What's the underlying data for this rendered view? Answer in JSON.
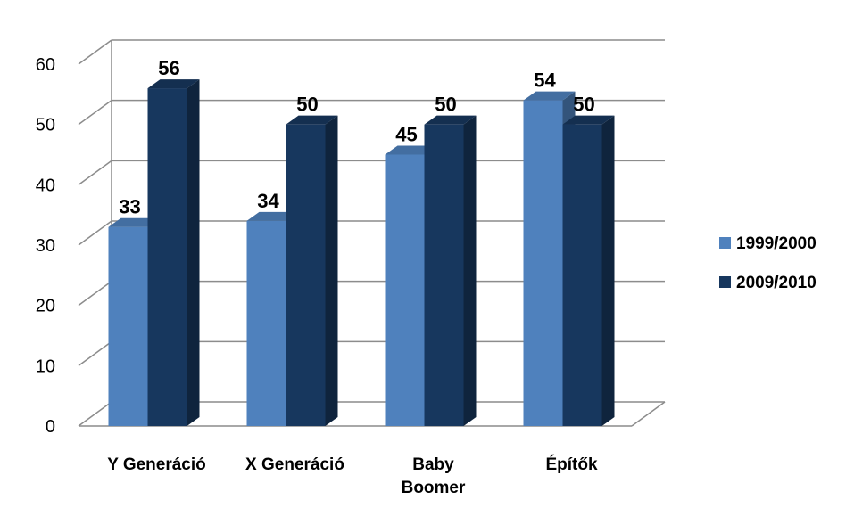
{
  "chart_data": {
    "type": "bar",
    "title": "",
    "xlabel": "",
    "ylabel": "",
    "categories": [
      [
        "Y Generáció"
      ],
      [
        "X Generáció"
      ],
      [
        "Baby",
        "Boomer"
      ],
      [
        "Építők"
      ]
    ],
    "series": [
      {
        "name": "1999/2000",
        "values": [
          33,
          34,
          45,
          54
        ],
        "color": "#4f81bd"
      },
      {
        "name": "2009/2010",
        "values": [
          56,
          50,
          50,
          50
        ],
        "color": "#17375e"
      }
    ],
    "ylim": [
      0,
      60
    ],
    "yticks": [
      0,
      10,
      20,
      30,
      40,
      50,
      60
    ],
    "grid": true,
    "legend_position": "right",
    "data_labels": true,
    "style": "3d-clustered-column"
  }
}
